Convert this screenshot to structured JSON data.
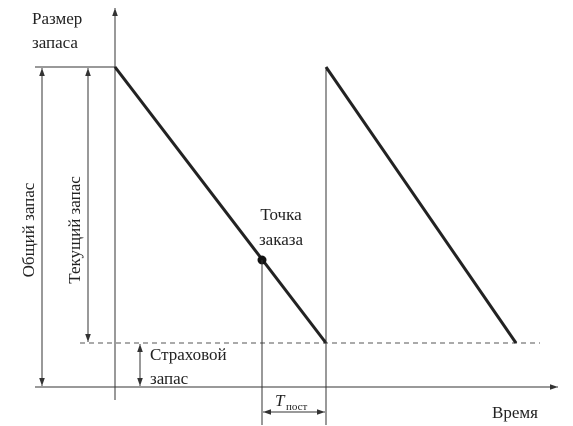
{
  "y_axis_label": [
    "Размер",
    "запаса"
  ],
  "x_axis_label": "Время",
  "total_stock": "Общий запас",
  "current_stock": "Текущий запас",
  "reorder_point": [
    "Точка",
    "заказа"
  ],
  "safety_stock": [
    "Страховой",
    "запас"
  ],
  "lead_time": {
    "symbol": "T",
    "subscript": "пост"
  }
}
